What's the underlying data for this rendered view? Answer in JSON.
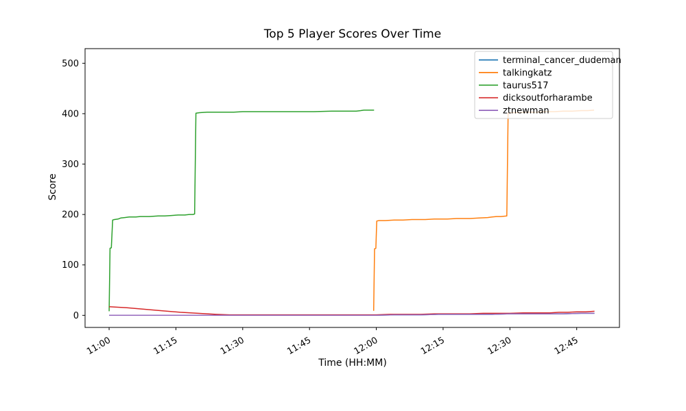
{
  "figure": {
    "title": "Top 5 Player Scores Over Time",
    "xlabel": "Time (HH:MM)",
    "ylabel": "Score",
    "background_color": "#ffffff"
  },
  "chart_data": {
    "type": "line",
    "title": "Top 5 Player Scores Over Time",
    "xlabel": "Time (HH:MM)",
    "ylabel": "Score",
    "x_unit": "minutes_after_11:00",
    "xlim": [
      -5.4,
      114.6
    ],
    "ylim": [
      -24,
      529
    ],
    "grid": false,
    "x_ticks": [
      {
        "t": 0,
        "label": "11:00"
      },
      {
        "t": 15,
        "label": "11:15"
      },
      {
        "t": 30,
        "label": "11:30"
      },
      {
        "t": 45,
        "label": "11:45"
      },
      {
        "t": 60,
        "label": "12:00"
      },
      {
        "t": 75,
        "label": "12:15"
      },
      {
        "t": 90,
        "label": "12:30"
      },
      {
        "t": 105,
        "label": "12:45"
      }
    ],
    "y_ticks": [
      0,
      100,
      200,
      300,
      400,
      500
    ],
    "legend": {
      "position": "upper right",
      "border_color": "#cccccc",
      "fill_color": "#ffffff",
      "fill_opacity": 0.8
    },
    "series": [
      {
        "name": "terminal_cancer_dudeman",
        "color": "#1f77b4",
        "points": [
          [
            0,
            0
          ],
          [
            20,
            0
          ],
          [
            40,
            0
          ],
          [
            60,
            0
          ],
          [
            64,
            1
          ],
          [
            70,
            1
          ],
          [
            74,
            2
          ],
          [
            80,
            2
          ],
          [
            86,
            2
          ],
          [
            90,
            3
          ],
          [
            96,
            3
          ],
          [
            102,
            3
          ],
          [
            106,
            4
          ],
          [
            109,
            4
          ]
        ]
      },
      {
        "name": "talkingkatz",
        "color": "#ff7f0e",
        "points": [
          [
            59.4,
            9
          ],
          [
            59.6,
            132
          ],
          [
            59.9,
            133
          ],
          [
            60.1,
            187
          ],
          [
            60.6,
            188
          ],
          [
            62,
            188
          ],
          [
            64,
            189
          ],
          [
            66,
            189
          ],
          [
            68,
            190
          ],
          [
            71,
            190
          ],
          [
            73,
            191
          ],
          [
            76,
            191
          ],
          [
            78,
            192
          ],
          [
            81,
            192
          ],
          [
            83,
            193
          ],
          [
            85,
            194
          ],
          [
            86,
            195
          ],
          [
            87,
            196
          ],
          [
            88,
            196
          ],
          [
            89.3,
            197
          ],
          [
            89.6,
            401
          ],
          [
            90.3,
            402
          ],
          [
            92,
            402
          ],
          [
            94,
            403
          ],
          [
            96,
            403
          ],
          [
            98,
            404
          ],
          [
            100,
            404
          ],
          [
            102,
            405
          ],
          [
            104,
            405
          ],
          [
            106,
            406
          ],
          [
            107.5,
            406
          ],
          [
            108.9,
            407
          ]
        ]
      },
      {
        "name": "taurus517",
        "color": "#2ca02c",
        "points": [
          [
            0,
            8
          ],
          [
            0.2,
            133
          ],
          [
            0.5,
            134
          ],
          [
            0.8,
            189
          ],
          [
            1.2,
            190
          ],
          [
            2,
            191
          ],
          [
            2.6,
            193
          ],
          [
            3.5,
            194
          ],
          [
            4.5,
            195
          ],
          [
            6,
            195
          ],
          [
            7,
            196
          ],
          [
            9,
            196
          ],
          [
            11,
            197
          ],
          [
            12.5,
            197
          ],
          [
            14,
            198
          ],
          [
            15.5,
            199
          ],
          [
            17,
            199
          ],
          [
            18,
            200
          ],
          [
            18.8,
            200
          ],
          [
            19.2,
            201
          ],
          [
            19.5,
            401
          ],
          [
            20.3,
            402
          ],
          [
            22,
            403
          ],
          [
            25,
            403
          ],
          [
            28,
            403
          ],
          [
            30,
            404
          ],
          [
            34,
            404
          ],
          [
            38,
            404
          ],
          [
            42,
            404
          ],
          [
            46,
            404
          ],
          [
            50,
            405
          ],
          [
            53,
            405
          ],
          [
            55.5,
            405
          ],
          [
            56.5,
            406
          ],
          [
            57.2,
            407
          ],
          [
            59.5,
            407
          ]
        ]
      },
      {
        "name": "dicksoutforharambe",
        "color": "#d62728",
        "points": [
          [
            0,
            17
          ],
          [
            4,
            15
          ],
          [
            8,
            12
          ],
          [
            12,
            9
          ],
          [
            16,
            6
          ],
          [
            20,
            4
          ],
          [
            24,
            2
          ],
          [
            27,
            1
          ],
          [
            32,
            1
          ],
          [
            38,
            1
          ],
          [
            44,
            1
          ],
          [
            50,
            1
          ],
          [
            56,
            1
          ],
          [
            60,
            1
          ],
          [
            63,
            2
          ],
          [
            67,
            2
          ],
          [
            70,
            2
          ],
          [
            73,
            3
          ],
          [
            77,
            3
          ],
          [
            81,
            3
          ],
          [
            84,
            4
          ],
          [
            87,
            4
          ],
          [
            90,
            4
          ],
          [
            93,
            5
          ],
          [
            96,
            5
          ],
          [
            99,
            5
          ],
          [
            101,
            6
          ],
          [
            103,
            6
          ],
          [
            105,
            7
          ],
          [
            107,
            7
          ],
          [
            109,
            8
          ]
        ]
      },
      {
        "name": "ztnewman",
        "color": "#9467bd",
        "points": [
          [
            0,
            0
          ],
          [
            20,
            0
          ],
          [
            40,
            0
          ],
          [
            60,
            0
          ],
          [
            64,
            1
          ],
          [
            70,
            1
          ],
          [
            74,
            2
          ],
          [
            80,
            2
          ],
          [
            86,
            2
          ],
          [
            90,
            3
          ],
          [
            96,
            3
          ],
          [
            102,
            3
          ],
          [
            106,
            4
          ],
          [
            109,
            4
          ]
        ]
      }
    ]
  }
}
